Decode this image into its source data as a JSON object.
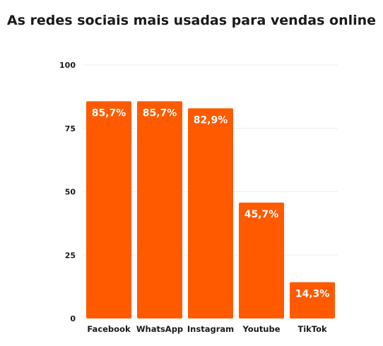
{
  "chart_data": {
    "type": "bar",
    "title": "As redes sociais mais usadas para vendas online",
    "xlabel": "",
    "ylabel": "",
    "categories": [
      "Facebook",
      "WhatsApp",
      "Instagram",
      "Youtube",
      "TikTok"
    ],
    "values": [
      85.7,
      85.7,
      82.9,
      45.7,
      14.3
    ],
    "value_labels": [
      "85,7%",
      "85,7%",
      "82,9%",
      "45,7%",
      "14,3%"
    ],
    "ylim": [
      0,
      100
    ],
    "yticks": [
      0,
      25,
      50,
      75,
      100
    ],
    "ytick_labels": [
      "0",
      "25",
      "50",
      "75",
      "100"
    ],
    "grid": true,
    "legend": "none",
    "bar_color": "#ff5a00"
  }
}
